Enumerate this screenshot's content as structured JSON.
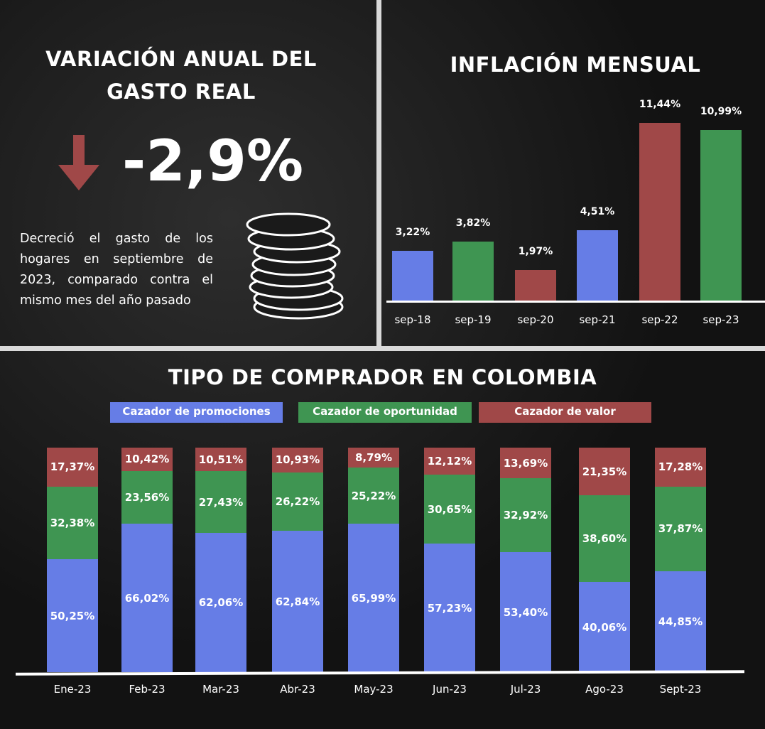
{
  "left_panel": {
    "title": "VARIACIÓN ANUAL DEL GASTO REAL",
    "value": "-2,9%",
    "description": "Decreció el gasto de los hogares en septiembre de 2023, comparado contra el mismo mes del año pasado",
    "icons": [
      "arrow-down-icon",
      "coins-icon"
    ]
  },
  "colors": {
    "blue": "#667de6",
    "green": "#3f9552",
    "red": "#a04848"
  },
  "chart_data": [
    {
      "type": "bar",
      "title": "INFLACIÓN MENSUAL",
      "categories": [
        "sep-18",
        "sep-19",
        "sep-20",
        "sep-21",
        "sep-22",
        "sep-23"
      ],
      "values": [
        3.22,
        3.82,
        1.97,
        4.51,
        11.44,
        10.99
      ],
      "labels": [
        "3,22%",
        "3,82%",
        "1,97%",
        "4,51%",
        "11,44%",
        "10,99%"
      ],
      "bar_colors": [
        "blue",
        "green",
        "red",
        "blue",
        "red",
        "green"
      ],
      "ylim": [
        0,
        11.44
      ],
      "grid": false
    },
    {
      "type": "bar",
      "stacked": true,
      "title": "TIPO DE COMPRADOR EN COLOMBIA",
      "legend_position": "top",
      "categories": [
        "Ene-23",
        "Feb-23",
        "Mar-23",
        "Abr-23",
        "May-23",
        "Jun-23",
        "Jul-23",
        "Ago-23",
        "Sept-23"
      ],
      "series": [
        {
          "name": "Cazador de promociones",
          "color": "blue",
          "values": [
            50.25,
            66.02,
            62.06,
            62.84,
            65.99,
            57.23,
            53.4,
            40.06,
            44.85
          ],
          "labels": [
            "50,25%",
            "66,02%",
            "62,06%",
            "62,84%",
            "65,99%",
            "57,23%",
            "53,40%",
            "40,06%",
            "44,85%"
          ]
        },
        {
          "name": "Cazador de oportunidad",
          "color": "green",
          "values": [
            32.38,
            23.56,
            27.43,
            26.22,
            25.22,
            30.65,
            32.92,
            38.6,
            37.87
          ],
          "labels": [
            "32,38%",
            "23,56%",
            "27,43%",
            "26,22%",
            "25,22%",
            "30,65%",
            "32,92%",
            "38,60%",
            "37,87%"
          ]
        },
        {
          "name": "Cazador de valor",
          "color": "red",
          "values": [
            17.37,
            10.42,
            10.51,
            10.93,
            8.79,
            12.12,
            13.69,
            21.35,
            17.28
          ],
          "labels": [
            "17,37%",
            "10,42%",
            "10,51%",
            "10,93%",
            "8,79%",
            "12,12%",
            "13,69%",
            "21,35%",
            "17,28%"
          ]
        }
      ],
      "ylim": [
        0,
        100
      ]
    }
  ]
}
